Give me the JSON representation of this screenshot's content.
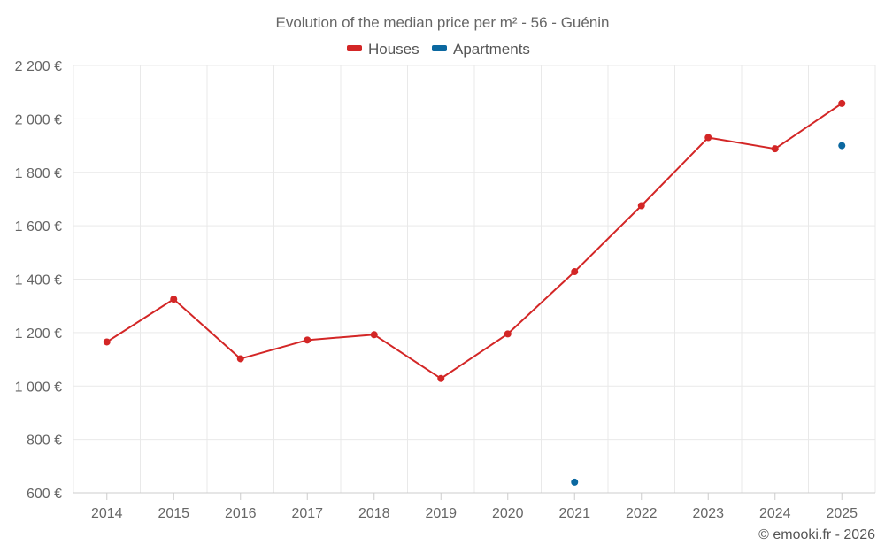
{
  "chart_data": {
    "type": "line",
    "title": "Evolution of the median price per m² - 56 - Guénin",
    "categories": [
      "2014",
      "2015",
      "2016",
      "2017",
      "2018",
      "2019",
      "2020",
      "2021",
      "2022",
      "2023",
      "2024",
      "2025"
    ],
    "ylim": [
      600,
      2200
    ],
    "yticks": [
      600,
      800,
      1000,
      1200,
      1400,
      1600,
      1800,
      2000,
      2200
    ],
    "ytick_labels": [
      "600 €",
      "800 €",
      "1 000 €",
      "1 200 €",
      "1 400 €",
      "1 600 €",
      "1 800 €",
      "2 000 €",
      "2 200 €"
    ],
    "grid": true,
    "legend_position": "top-center",
    "series": [
      {
        "name": "Houses",
        "color": "#d32626",
        "values": [
          1165,
          1325,
          1102,
          1172,
          1192,
          1028,
          1195,
          1428,
          1675,
          1930,
          1888,
          2058
        ]
      },
      {
        "name": "Apartments",
        "color": "#0b68a0",
        "values": [
          null,
          null,
          null,
          null,
          null,
          null,
          null,
          640,
          null,
          null,
          null,
          1900
        ]
      }
    ],
    "credit": "© emooki.fr - 2026"
  }
}
